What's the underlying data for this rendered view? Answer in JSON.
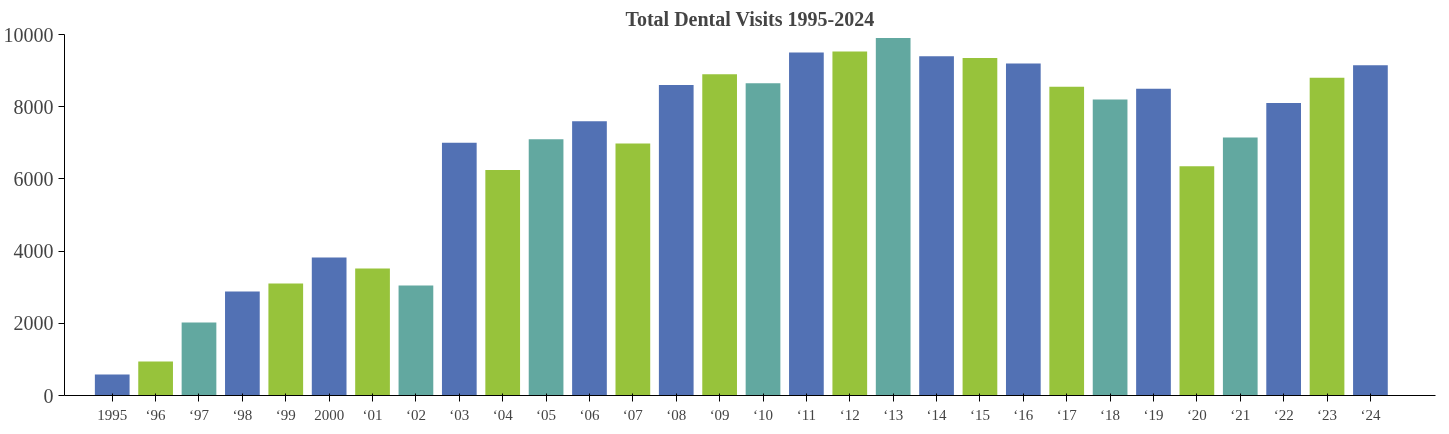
{
  "chart_data": {
    "type": "bar",
    "title": "Total Dental Visits 1995-2024",
    "categories": [
      "1995",
      "‘96",
      "‘97",
      "‘98",
      "‘99",
      "2000",
      "‘01",
      "‘02",
      "‘03",
      "‘04",
      "‘05",
      "‘06",
      "‘07",
      "‘08",
      "‘09",
      "‘10",
      "‘11",
      "‘12",
      "‘13",
      "‘14",
      "‘15",
      "‘16",
      "‘17",
      "‘18",
      "‘19",
      "‘20",
      "‘21",
      "‘22",
      "‘23",
      "‘24"
    ],
    "values": [
      580,
      940,
      2020,
      2880,
      3100,
      3820,
      3520,
      3050,
      7000,
      6250,
      7100,
      7600,
      6980,
      8600,
      8900,
      8650,
      9500,
      9530,
      9900,
      9400,
      9350,
      9200,
      8550,
      8200,
      8500,
      6350,
      7150,
      8100,
      8800,
      9150
    ],
    "colors": [
      "#5271b4",
      "#97c33b",
      "#62a8a0",
      "#5271b4",
      "#97c33b",
      "#5271b4",
      "#97c33b",
      "#62a8a0",
      "#5271b4",
      "#97c33b",
      "#62a8a0",
      "#5271b4",
      "#97c33b",
      "#5271b4",
      "#97c33b",
      "#62a8a0",
      "#5271b4",
      "#97c33b",
      "#62a8a0",
      "#5271b4",
      "#97c33b",
      "#5271b4",
      "#97c33b",
      "#62a8a0",
      "#5271b4",
      "#97c33b",
      "#62a8a0",
      "#5271b4",
      "#97c33b",
      "#5271b4"
    ],
    "ylim": [
      0,
      10000
    ],
    "yticks": [
      0,
      2000,
      4000,
      6000,
      8000,
      10000
    ],
    "grid": false
  }
}
